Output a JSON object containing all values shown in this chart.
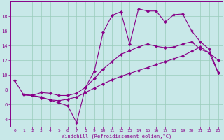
{
  "xlabel": "Windchill (Refroidissement éolien,°C)",
  "bg_color": "#c8e8e8",
  "line_color": "#880088",
  "grid_color": "#99ccbb",
  "xlim": [
    -0.5,
    23.5
  ],
  "ylim": [
    3.0,
    20.0
  ],
  "xticks": [
    0,
    1,
    2,
    3,
    4,
    5,
    6,
    7,
    8,
    9,
    10,
    11,
    12,
    13,
    14,
    15,
    16,
    17,
    18,
    19,
    20,
    21,
    22,
    23
  ],
  "yticks": [
    4,
    6,
    8,
    10,
    12,
    14,
    16,
    18
  ],
  "curve1_x": [
    0,
    1,
    2,
    3,
    4,
    5,
    6,
    7,
    8,
    9,
    10,
    11,
    12,
    13,
    14,
    15,
    16,
    17,
    18,
    19,
    20,
    21,
    22,
    23
  ],
  "curve1_y": [
    9.2,
    7.3,
    7.2,
    7.0,
    6.6,
    6.2,
    5.8,
    3.5,
    8.3,
    10.5,
    15.8,
    18.1,
    18.6,
    14.2,
    19.0,
    18.7,
    18.7,
    17.2,
    18.2,
    18.3,
    16.0,
    14.5,
    13.5,
    10.3
  ],
  "curve2_x": [
    1,
    2,
    3,
    4,
    5,
    6,
    7,
    8,
    9,
    10,
    11,
    12,
    13,
    14,
    15,
    16,
    17,
    18,
    19,
    20,
    21,
    22,
    23
  ],
  "curve2_y": [
    7.3,
    7.2,
    7.6,
    7.5,
    7.2,
    7.2,
    7.5,
    8.3,
    9.5,
    10.8,
    11.8,
    12.8,
    13.3,
    13.8,
    14.2,
    13.9,
    13.7,
    13.8,
    14.2,
    14.5,
    13.5,
    13.0,
    12.0
  ],
  "curve3_x": [
    1,
    2,
    3,
    4,
    5,
    6,
    7,
    8,
    9,
    10,
    11,
    12,
    13,
    14,
    15,
    16,
    17,
    18,
    19,
    20,
    21,
    22,
    23
  ],
  "curve3_y": [
    7.3,
    7.2,
    6.9,
    6.6,
    6.5,
    6.7,
    7.0,
    7.6,
    8.2,
    8.8,
    9.3,
    9.8,
    10.2,
    10.6,
    11.0,
    11.4,
    11.8,
    12.2,
    12.6,
    13.2,
    13.8,
    13.0,
    10.3
  ]
}
